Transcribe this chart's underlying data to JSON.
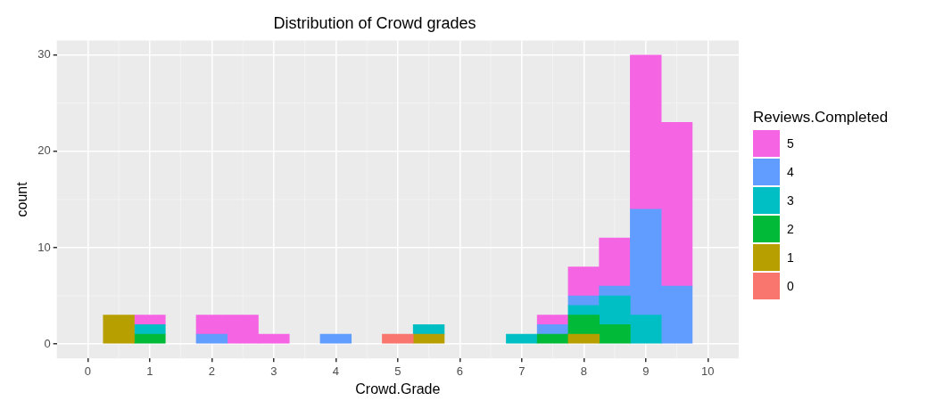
{
  "chart_data": {
    "type": "bar",
    "title": "Distribution of Crowd grades",
    "xlabel": "Crowd.Grade",
    "ylabel": "count",
    "legend_title": "Reviews.Completed",
    "stacked": true,
    "legend": "right",
    "grid": true,
    "x": [
      0.5,
      1,
      1.5,
      2,
      2.5,
      3,
      3.5,
      4,
      4.5,
      5,
      5.5,
      6,
      6.5,
      7,
      7.5,
      8,
      8.5,
      9,
      9.5
    ],
    "xlim": [
      -0.5,
      10.5
    ],
    "xticks": [
      0,
      1,
      2,
      3,
      4,
      5,
      6,
      7,
      8,
      9,
      10
    ],
    "ylim": [
      -1.5,
      31.5
    ],
    "yticks": [
      0,
      10,
      20,
      30
    ],
    "series": [
      {
        "name": "0",
        "color": "#f8766d",
        "values": [
          0,
          0,
          0,
          0,
          0,
          0,
          0,
          0,
          0,
          1,
          0,
          0,
          0,
          0,
          0,
          0,
          0,
          0,
          0
        ]
      },
      {
        "name": "1",
        "color": "#b79f00",
        "values": [
          3,
          0,
          0,
          0,
          0,
          0,
          0,
          0,
          0,
          0,
          1,
          0,
          0,
          0,
          0,
          1,
          0,
          0,
          0
        ]
      },
      {
        "name": "2",
        "color": "#00ba38",
        "values": [
          0,
          1,
          0,
          0,
          0,
          0,
          0,
          0,
          0,
          0,
          0,
          0,
          0,
          0,
          1,
          2,
          2,
          0,
          0
        ]
      },
      {
        "name": "3",
        "color": "#00bfc4",
        "values": [
          0,
          1,
          0,
          0,
          0,
          0,
          0,
          0,
          0,
          0,
          1,
          0,
          0,
          1,
          0,
          1,
          3,
          3,
          0
        ]
      },
      {
        "name": "4",
        "color": "#619cff",
        "values": [
          0,
          0,
          0,
          1,
          0,
          0,
          0,
          1,
          0,
          0,
          0,
          0,
          0,
          0,
          1,
          1,
          1,
          11,
          6
        ]
      },
      {
        "name": "5",
        "color": "#f564e3",
        "values": [
          0,
          1,
          0,
          2,
          3,
          1,
          0,
          0,
          0,
          0,
          0,
          0,
          0,
          0,
          1,
          3,
          5,
          16,
          17
        ]
      }
    ]
  }
}
